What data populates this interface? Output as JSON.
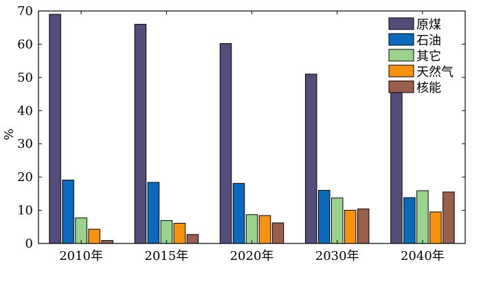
{
  "chart_data": {
    "type": "bar",
    "categories": [
      "2010年",
      "2015年",
      "2020年",
      "2030年",
      "2040年"
    ],
    "series": [
      {
        "name": "原煤",
        "color": "#554d79",
        "values": [
          69,
          66,
          60.2,
          51,
          46.5
        ]
      },
      {
        "name": "石油",
        "color": "#0a6bbd",
        "values": [
          19.1,
          18.4,
          18.1,
          16,
          13.8
        ]
      },
      {
        "name": "其它",
        "color": "#9bd28e",
        "values": [
          7.7,
          6.9,
          8.7,
          13.7,
          15.9
        ]
      },
      {
        "name": "天然气",
        "color": "#f7920f",
        "values": [
          4.3,
          6.1,
          8.4,
          10,
          9.5
        ]
      },
      {
        "name": "核能",
        "color": "#995e4c",
        "values": [
          0.9,
          2.7,
          6.2,
          10.4,
          15.5
        ]
      }
    ],
    "ylabel": "%",
    "ylim": [
      0,
      70
    ],
    "yticks": [
      0,
      10,
      20,
      30,
      40,
      50,
      60,
      70
    ],
    "legend_position": "top-right",
    "grid": false
  }
}
